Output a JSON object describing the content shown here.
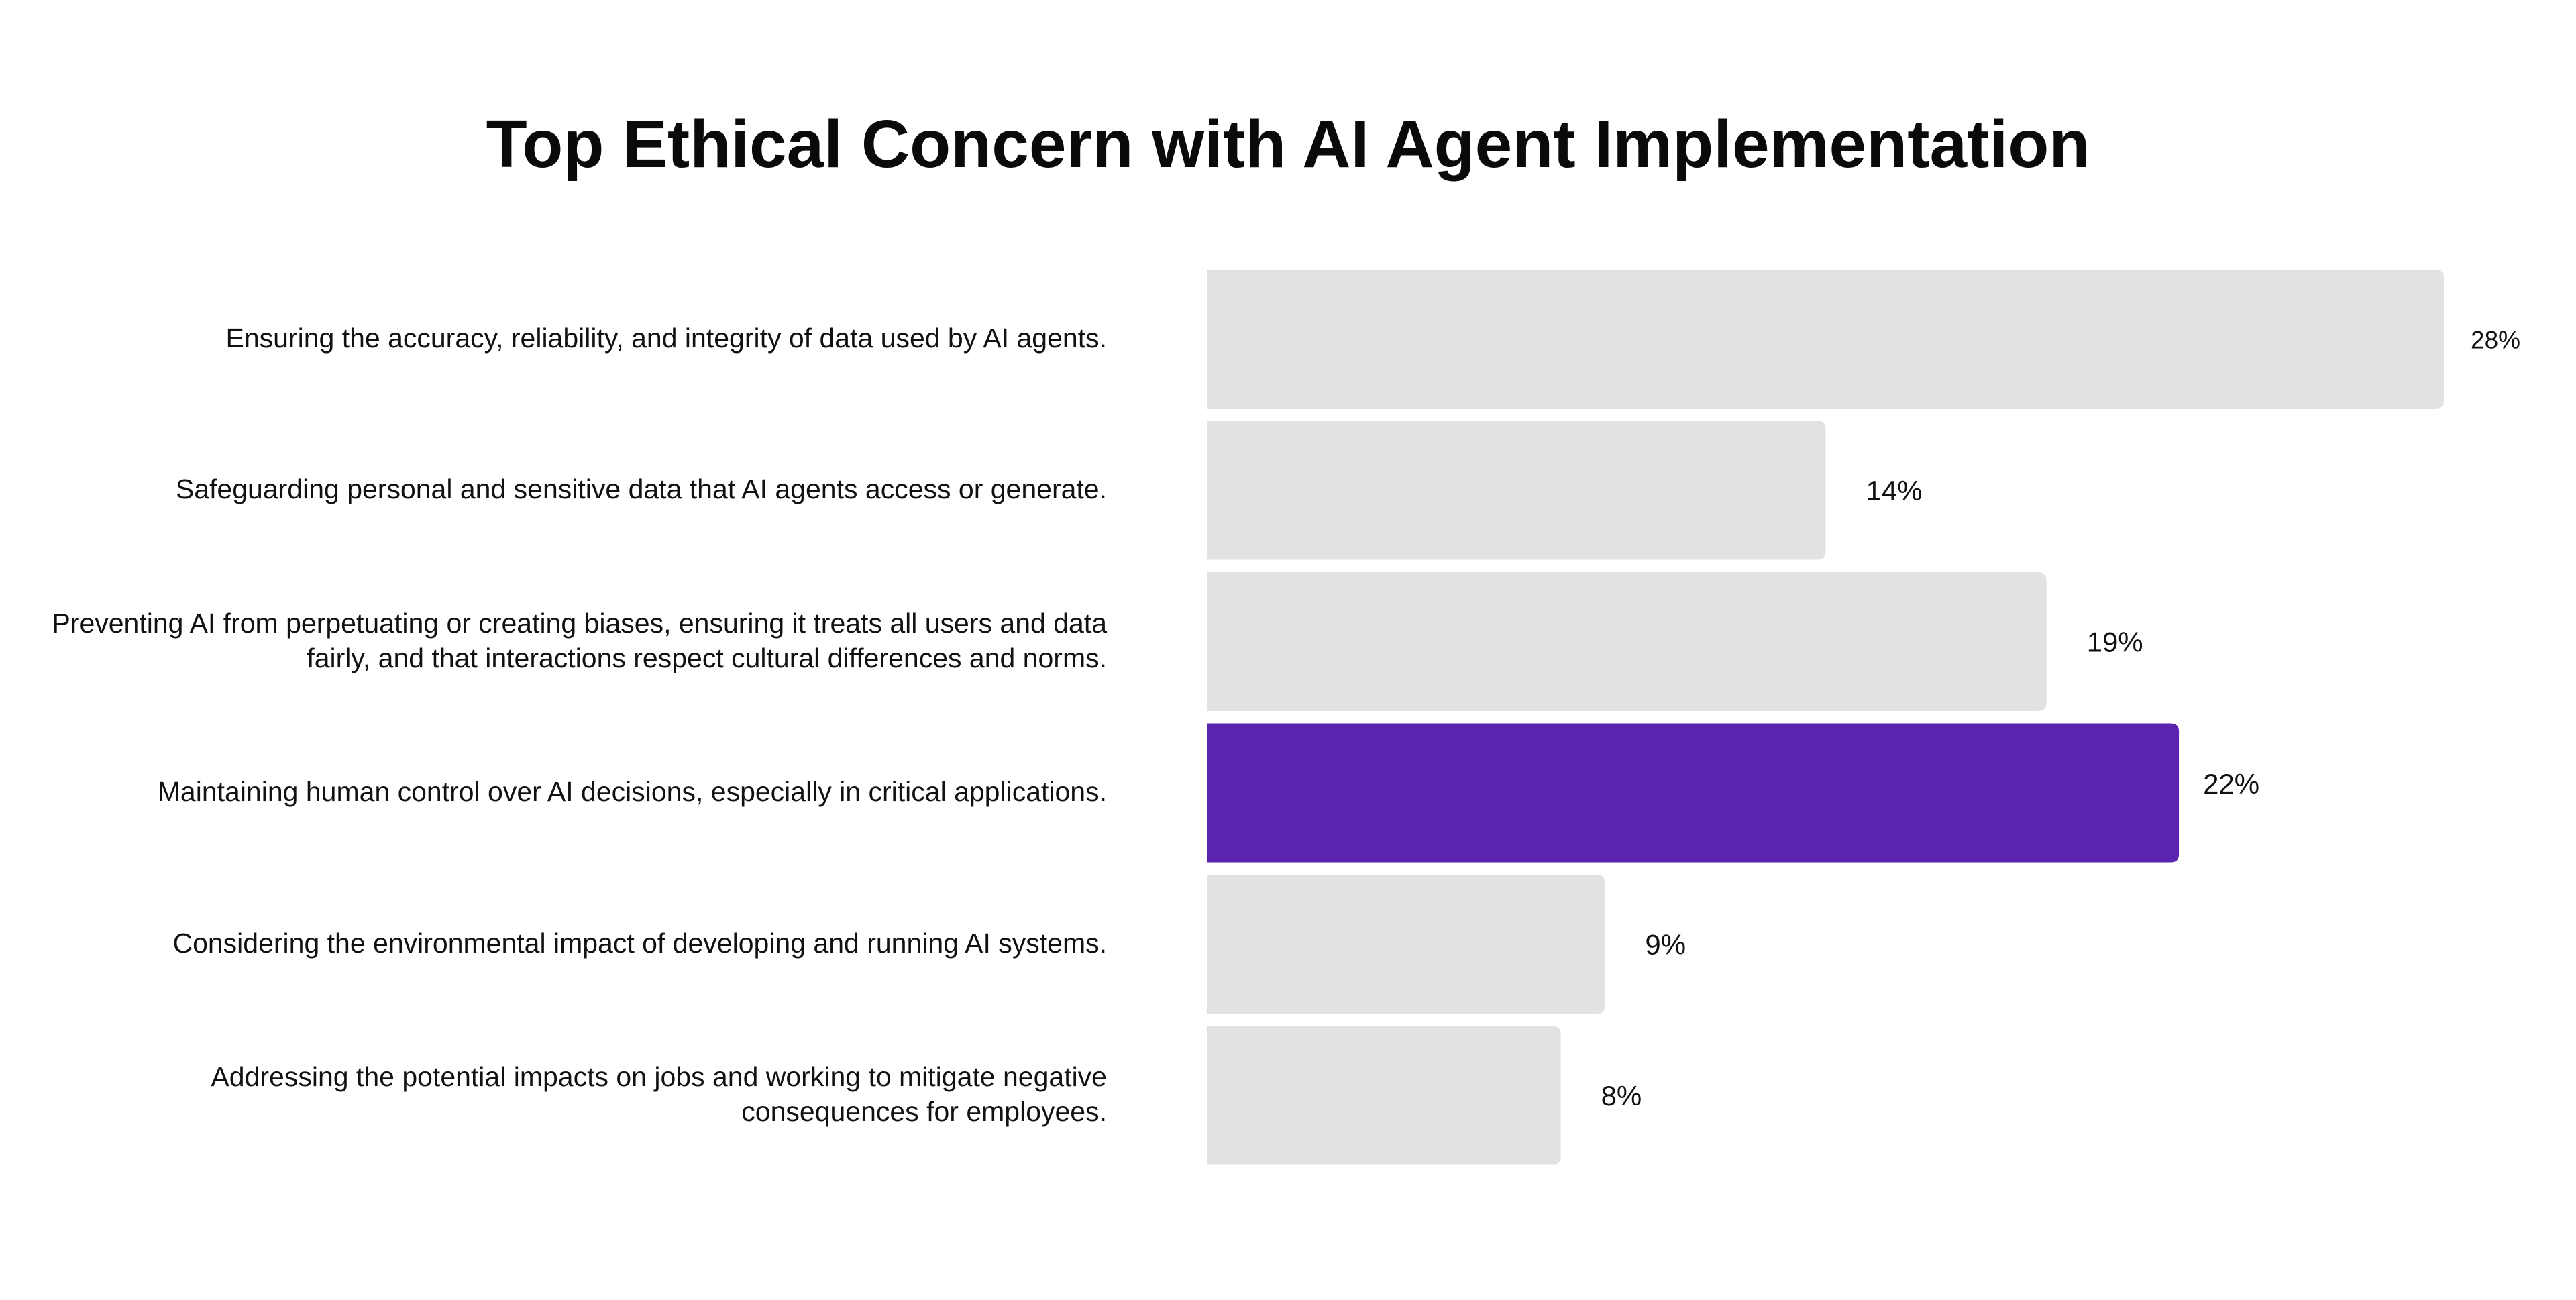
{
  "chart_data": {
    "type": "bar",
    "orientation": "horizontal",
    "title": "Top Ethical Concern with AI Agent Implementation",
    "xlabel": "",
    "ylabel": "",
    "xlim": [
      0,
      28
    ],
    "grid": false,
    "legend": "none",
    "value_suffix": "%",
    "categories": [
      "Ensuring the accuracy, reliability, and integrity of data used by AI agents.",
      "Safeguarding personal and sensitive data that AI agents access or generate.",
      "Preventing AI from perpetuating or creating biases, ensuring it treats all users and data fairly, and that interactions respect cultural differences and norms.",
      "Maintaining human control over AI decisions, especially in critical applications.",
      "Considering the environmental impact of developing and running AI systems.",
      "Addressing the potential impacts on jobs and working to mitigate negative consequences for employees."
    ],
    "values": [
      28,
      14,
      19,
      22,
      9,
      8
    ],
    "value_labels": [
      "28%",
      "14%",
      "19%",
      "22%",
      "9%",
      "8%"
    ],
    "highlight_index": 3,
    "colors": {
      "bar": "#e3e1e4",
      "highlight": "#5b24b0",
      "text": "#111111"
    }
  }
}
